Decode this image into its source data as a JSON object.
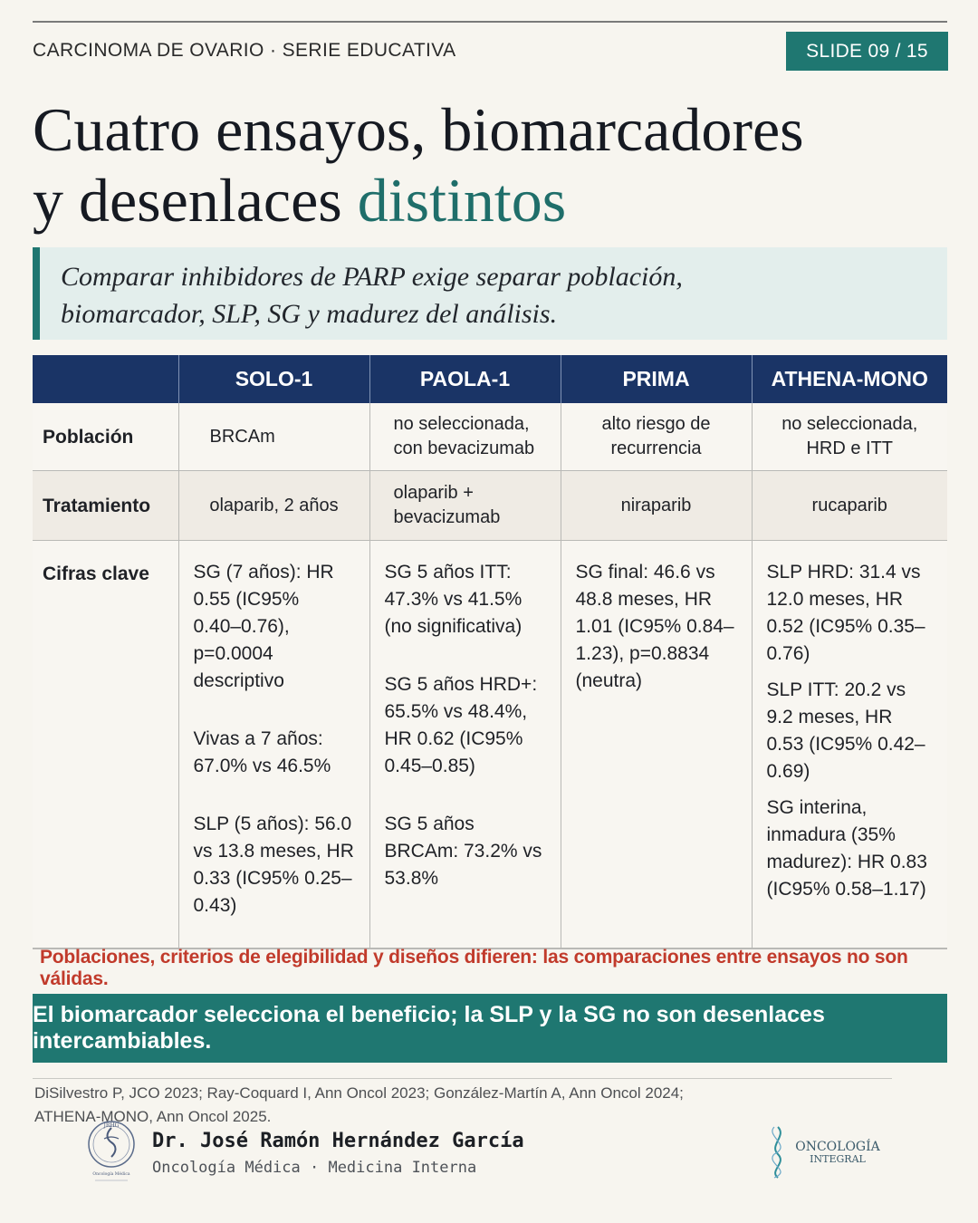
{
  "header": {
    "series": "CARCINOMA DE OVARIO · SERIE EDUCATIVA",
    "slide": "SLIDE 09 / 15"
  },
  "title": {
    "line1": "Cuatro ensayos, biomarcadores",
    "line2_prefix": "y desenlaces ",
    "line2_accent": "distintos"
  },
  "lead": {
    "line1": "Comparar inhibidores de PARP exige separar población,",
    "line2": "biomarcador, SLP, SG y madurez del análisis."
  },
  "table": {
    "columns": [
      "SOLO-1",
      "PAOLA-1",
      "PRIMA",
      "ATHENA-MONO"
    ],
    "rows": {
      "poblacion": {
        "label": "Población",
        "cells": [
          "BRCAm",
          "no seleccionada, con bevacizumab",
          "alto riesgo de recurrencia",
          "no seleccionada, HRD e ITT"
        ]
      },
      "tratamiento": {
        "label": "Tratamiento",
        "cells": [
          "olaparib, 2 años",
          "olaparib + bevacizumab",
          "niraparib",
          "rucaparib"
        ]
      },
      "cifras": {
        "label": "Cifras clave",
        "solo1": [
          "SG (7 años): HR 0.55 (IC95% 0.40–0.76), p=0.0004 descriptivo",
          "Vivas a 7 años: 67.0% vs 46.5%",
          "SLP (5 años): 56.0 vs 13.8 meses, HR 0.33 (IC95% 0.25–0.43)"
        ],
        "paola1": [
          "SG 5 años ITT: 47.3% vs 41.5% (no significativa)",
          "SG 5 años HRD+: 65.5% vs 48.4%, HR 0.62 (IC95% 0.45–0.85)",
          "SG 5 años BRCAm: 73.2% vs 53.8%"
        ],
        "prima": [
          "SG final: 46.6 vs 48.8 meses, HR 1.01 (IC95% 0.84–1.23), p=0.8834 (neutra)"
        ],
        "athena": [
          "SLP HRD: 31.4 vs 12.0 meses, HR 0.52 (IC95% 0.35–0.76)",
          "SLP ITT: 20.2 vs 9.2 meses, HR 0.53 (IC95% 0.42–0.69)",
          "SG interina, inmadura (35% madurez): HR 0.83 (IC95% 0.58–1.17)"
        ]
      }
    }
  },
  "warning": "Poblaciones, criterios de elegibilidad y diseños difieren: las comparaciones entre ensayos no son válidas.",
  "banner": "El biomarcador selecciona el beneficio; la SLP y la SG no son desenlaces intercambiables.",
  "references": "DiSilvestro P, JCO 2023; Ray-Coquard I, Ann Oncol 2023; González-Martín A, Ann Oncol 2024; ATHENA-MONO, Ann Oncol 2025.",
  "footer": {
    "author": "Dr. José Ramón Hernández García",
    "role": "Oncología Médica · Medicina Interna",
    "logo_left_text": "JRHG",
    "logo_left_sub": "Oncología Médica",
    "logo_right_line1": "ONCOLOGÍA",
    "logo_right_line2": "INTEGRAL"
  },
  "colors": {
    "teal": "#1f7771",
    "navy_header": "#1a3466",
    "warning_red": "#c13a2b",
    "lead_bg": "#e3eeec"
  }
}
